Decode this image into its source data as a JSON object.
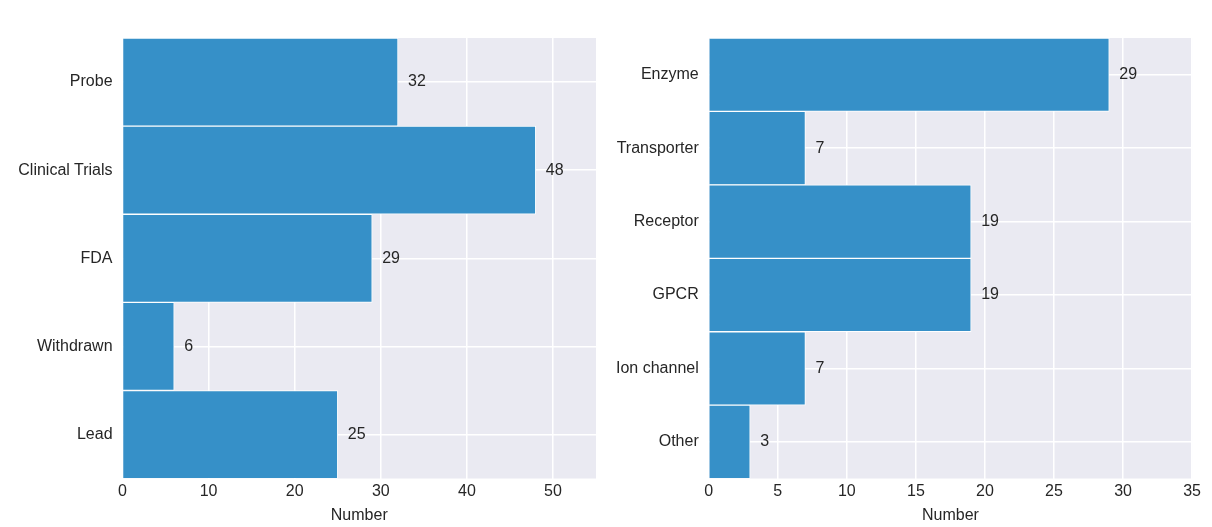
{
  "chart_data": [
    {
      "type": "bar",
      "orientation": "horizontal",
      "categories": [
        "Probe",
        "Clinical Trials",
        "FDA",
        "Withdrawn",
        "Lead"
      ],
      "values": [
        32,
        48,
        29,
        6,
        25
      ],
      "color": "#3690c8",
      "xlabel": "Number",
      "xlim": [
        0,
        55
      ],
      "xticks": [
        0,
        10,
        20,
        30,
        40,
        50
      ],
      "grid": true,
      "data_labels": true,
      "legend": false
    },
    {
      "type": "bar",
      "orientation": "horizontal",
      "categories": [
        "Enzyme",
        "Transporter",
        "Receptor",
        "GPCR",
        "Ion channel",
        "Other"
      ],
      "values": [
        29,
        7,
        19,
        19,
        7,
        3
      ],
      "color": "#3690c8",
      "xlabel": "Number",
      "xlim": [
        0,
        35
      ],
      "xticks": [
        0,
        5,
        10,
        15,
        20,
        25,
        30,
        35
      ],
      "grid": true,
      "data_labels": true,
      "legend": false
    }
  ]
}
